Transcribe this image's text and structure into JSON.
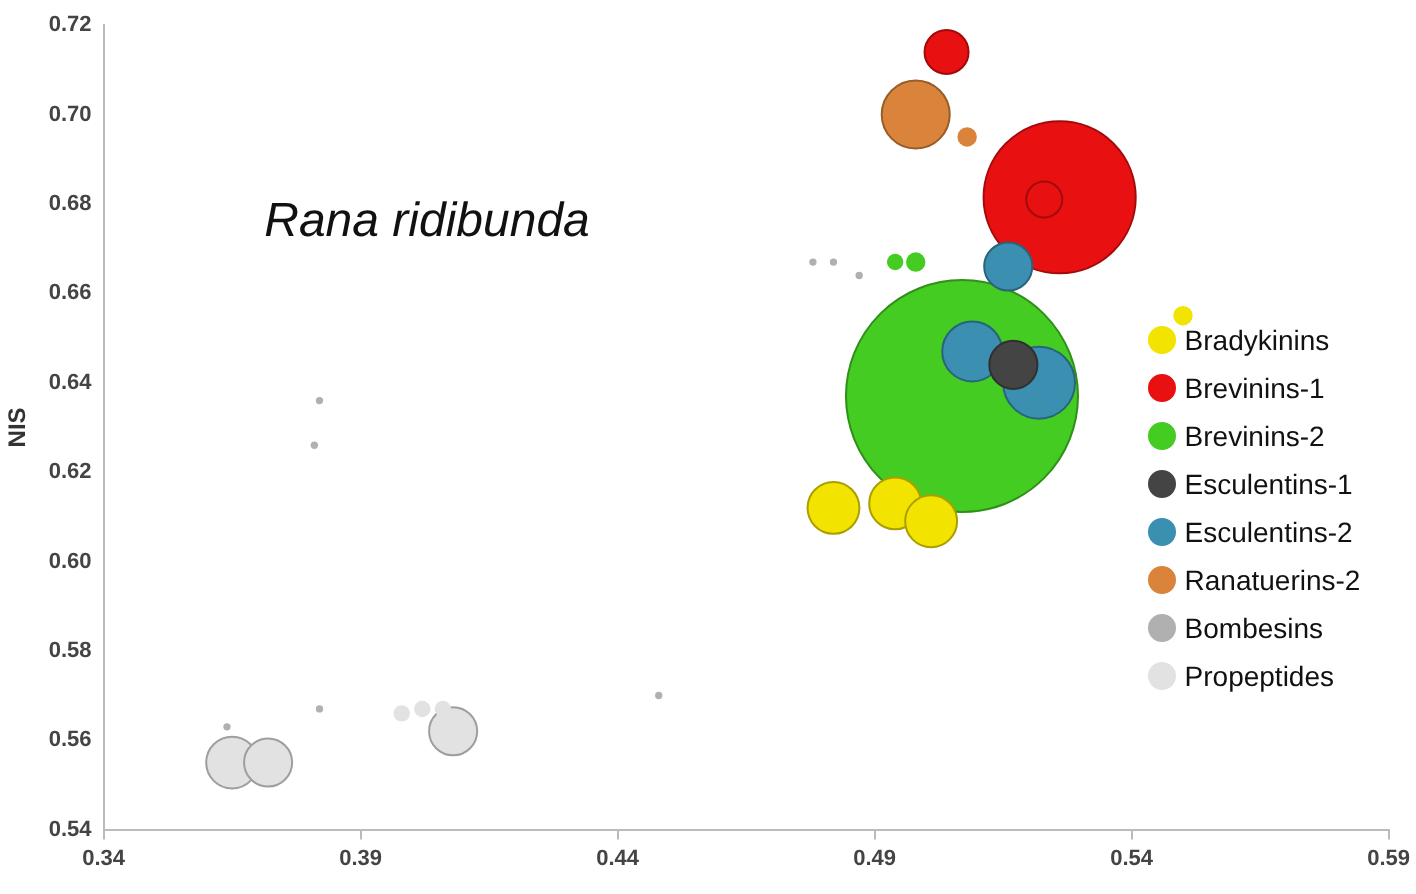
{
  "chart_data": {
    "type": "bubble",
    "ylabel": "NIS",
    "annotations": [
      "Rana ridibunda"
    ],
    "xlim": [
      0.34,
      0.59
    ],
    "xticks": [
      0.34,
      0.39,
      0.44,
      0.49,
      0.54,
      0.59
    ],
    "ylim": [
      0.54,
      0.72
    ],
    "yticks": [
      0.54,
      0.56,
      0.58,
      {
        "value": 0.6,
        "label": "0.60"
      },
      0.62,
      0.64,
      0.66,
      0.68,
      {
        "value": 0.7,
        "label": "0.70"
      },
      0.72
    ],
    "grid": false,
    "legend": "right",
    "series": [
      {
        "name": "Bradykinins",
        "color": "#f2e300",
        "x": [
          0.482,
          0.494,
          0.501,
          0.55
        ],
        "values": [
          0.612,
          0.613,
          0.609,
          0.655
        ],
        "sizes": [
          0.05,
          0.05,
          0.05,
          0.007
        ]
      },
      {
        "name": "Brevinins-1",
        "color": "#e81010",
        "x": [
          0.526,
          0.523,
          0.504
        ],
        "values": [
          0.6815,
          0.681,
          0.714
        ],
        "sizes": [
          0.43,
          0.024,
          0.036
        ]
      },
      {
        "name": "Brevinins-2",
        "color": "#44cc22",
        "x": [
          0.507,
          0.494,
          0.498
        ],
        "values": [
          0.637,
          0.667,
          0.667
        ],
        "sizes": [
          1,
          0.005,
          0.007
        ]
      },
      {
        "name": "Esculentins-1",
        "color": "#444444",
        "x": [
          0.517
        ],
        "values": [
          0.644
        ],
        "sizes": [
          0.043
        ]
      },
      {
        "name": "Esculentins-2",
        "color": "#3b8fb0",
        "x": [
          0.516,
          0.509,
          0.522
        ],
        "values": [
          0.666,
          0.647,
          0.64
        ],
        "sizes": [
          0.043,
          0.067,
          0.096
        ]
      },
      {
        "name": "Ranatuerins-2",
        "color": "#d9843a",
        "x": [
          0.498,
          0.508
        ],
        "values": [
          0.7,
          0.695
        ],
        "sizes": [
          0.086,
          0.007
        ]
      },
      {
        "name": "Bombesins",
        "color": "#b0b0b0",
        "x": [
          0.478,
          0.482,
          0.487,
          0.382,
          0.381,
          0.364,
          0.382,
          0.448
        ],
        "values": [
          0.667,
          0.667,
          0.664,
          0.636,
          0.626,
          0.563,
          0.567,
          0.57
        ],
        "sizes": [
          0.001,
          0.001,
          0.001,
          0.001,
          0.001,
          0.001,
          0.001,
          0.001
        ]
      },
      {
        "name": "Propeptides",
        "color": "#e2e2e2",
        "x": [
          0.365,
          0.372,
          0.408,
          0.398,
          0.402,
          0.406
        ],
        "values": [
          0.555,
          0.555,
          0.562,
          0.566,
          0.567,
          0.567
        ],
        "sizes": [
          0.05,
          0.043,
          0.043,
          0.005,
          0.005,
          0.005
        ]
      }
    ]
  }
}
